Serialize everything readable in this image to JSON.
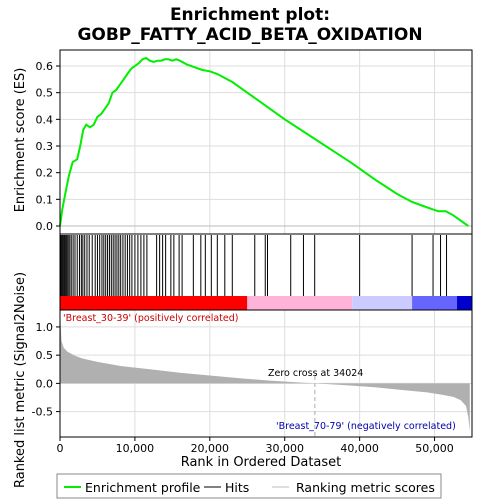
{
  "chart_data": {
    "type": "line",
    "title_line1": "Enrichment plot:",
    "title_line2": "GOBP_FATTY_ACID_BETA_OXIDATION",
    "xlabel": "Rank in Ordered Dataset",
    "ylabel_top": "Enrichment score (ES)",
    "ylabel_bottom": "Ranked list metric (Signal2Noise)",
    "xlim": [
      0,
      55000
    ],
    "x_ticks": [
      0,
      10000,
      20000,
      30000,
      40000,
      50000
    ],
    "x_tick_labels": [
      "0",
      "10,000",
      "20,000",
      "30,000",
      "40,000",
      "50,000"
    ],
    "es_ylim": [
      -0.03,
      0.66
    ],
    "es_ticks": [
      0.0,
      0.1,
      0.2,
      0.3,
      0.4,
      0.5,
      0.6
    ],
    "es_tick_labels": [
      "0.0",
      "0.1",
      "0.2",
      "0.3",
      "0.4",
      "0.5",
      "0.6"
    ],
    "metric_ylim": [
      -0.95,
      1.3
    ],
    "metric_ticks": [
      -0.5,
      0.0,
      0.5,
      1.0
    ],
    "metric_tick_labels": [
      "-0.5",
      "0.0",
      "0.5",
      "1.0"
    ],
    "es_curve": {
      "x": [
        0,
        300,
        700,
        1200,
        1700,
        2300,
        2700,
        3100,
        3500,
        4000,
        4500,
        5000,
        5500,
        6000,
        6500,
        7000,
        7500,
        8000,
        8500,
        9000,
        9500,
        10000,
        10500,
        11000,
        11500,
        12000,
        12500,
        13000,
        13500,
        14000,
        14500,
        15000,
        15500,
        16000,
        17000,
        18000,
        19000,
        20000,
        21000,
        22000,
        23000,
        25000,
        27000,
        30000,
        33000,
        36000,
        39000,
        42000,
        45000,
        47000,
        48500,
        49500,
        50500,
        51500,
        52500,
        53500,
        54500
      ],
      "y": [
        0.0,
        0.06,
        0.12,
        0.19,
        0.24,
        0.25,
        0.3,
        0.36,
        0.38,
        0.37,
        0.38,
        0.41,
        0.42,
        0.44,
        0.46,
        0.5,
        0.51,
        0.53,
        0.55,
        0.57,
        0.59,
        0.6,
        0.61,
        0.625,
        0.63,
        0.62,
        0.615,
        0.62,
        0.62,
        0.625,
        0.625,
        0.62,
        0.625,
        0.62,
        0.605,
        0.595,
        0.585,
        0.58,
        0.57,
        0.555,
        0.54,
        0.5,
        0.46,
        0.4,
        0.345,
        0.29,
        0.235,
        0.175,
        0.12,
        0.09,
        0.075,
        0.065,
        0.055,
        0.055,
        0.04,
        0.02,
        0.0
      ]
    },
    "hits": [
      120,
      250,
      380,
      520,
      650,
      800,
      950,
      1100,
      1300,
      1500,
      1750,
      2000,
      2300,
      2600,
      2850,
      3050,
      3300,
      3600,
      3900,
      4300,
      4700,
      5000,
      5300,
      5600,
      5850,
      6100,
      6350,
      6600,
      6850,
      7100,
      7350,
      7600,
      7850,
      8100,
      8400,
      8700,
      9000,
      9300,
      9600,
      10000,
      10400,
      10800,
      11200,
      11600,
      12900,
      13300,
      13700,
      14100,
      14800,
      15200,
      15900,
      16300,
      17800,
      18800,
      19400,
      20200,
      21000,
      22000,
      23000,
      26000,
      27400,
      27700,
      30800,
      32500,
      34000,
      40000,
      47000,
      49800,
      50800,
      51600
    ],
    "metric_curve": {
      "x": [
        0,
        200,
        500,
        1000,
        2000,
        3000,
        5000,
        8000,
        12000,
        16000,
        20000,
        24000,
        28000,
        32000,
        34024,
        38000,
        42000,
        46000,
        49000,
        51000,
        52500,
        53500,
        54200,
        54500,
        54700
      ],
      "y": [
        1.3,
        0.75,
        0.63,
        0.56,
        0.49,
        0.44,
        0.38,
        0.31,
        0.25,
        0.19,
        0.14,
        0.09,
        0.05,
        0.015,
        0.0,
        -0.03,
        -0.07,
        -0.12,
        -0.16,
        -0.2,
        -0.24,
        -0.3,
        -0.4,
        -0.6,
        -0.85
      ]
    },
    "band_segments": [
      {
        "start": 0,
        "end": 25000,
        "color": "#ff0000"
      },
      {
        "start": 25000,
        "end": 39000,
        "color": "#ffb3d9"
      },
      {
        "start": 39000,
        "end": 47000,
        "color": "#cccbff"
      },
      {
        "start": 47000,
        "end": 53000,
        "color": "#6666ff"
      },
      {
        "start": 53000,
        "end": 55000,
        "color": "#0000cc"
      }
    ],
    "annotations": {
      "positive": "'Breast_30-39' (positively correlated)",
      "negative": "'Breast_70-79' (negatively correlated)",
      "zero_cross": "Zero cross at 34024",
      "zero_cross_x": 34024
    },
    "legend": [
      {
        "label": "Enrichment profile",
        "color": "#00ee00"
      },
      {
        "label": "Hits",
        "color": "#000000"
      },
      {
        "label": "Ranking metric scores",
        "color": "#bbbbbb"
      }
    ],
    "colors": {
      "es_line": "#00ee00",
      "metric_fill": "#b0b0b0",
      "positive_text": "#cc0000",
      "negative_text": "#0000aa"
    }
  }
}
